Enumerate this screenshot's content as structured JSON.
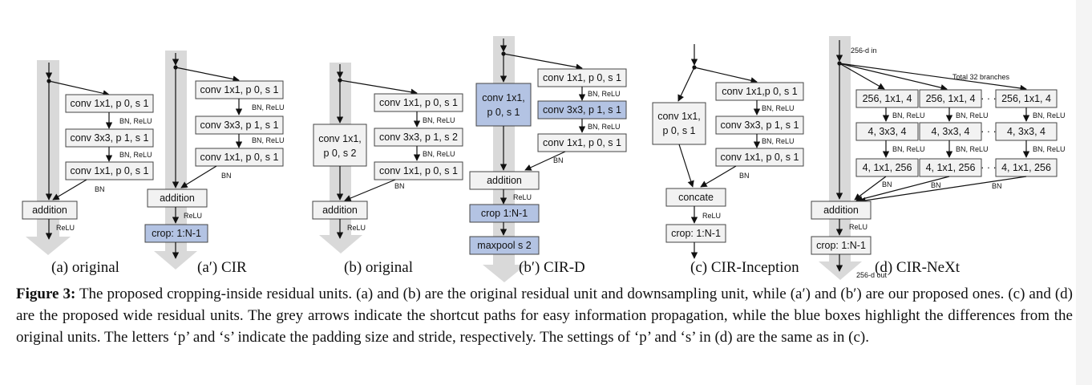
{
  "figure": {
    "a": {
      "convs": [
        "conv 1x1, p 0, s 1",
        "conv 3x3, p 1, s 1",
        "conv 1x1, p 0, s 1"
      ],
      "add": "addition",
      "label": "(a) original"
    },
    "a2": {
      "convs": [
        "conv 1x1, p 0, s 1",
        "conv 3x3,  p 1, s 1",
        "conv 1x1, p 0, s 1"
      ],
      "add": "addition",
      "crop": "crop: 1:N-1",
      "label": "(a′) CIR"
    },
    "b": {
      "convs": [
        "conv 1x1, p 0, s 1",
        "conv 3x3, p 1, s 2",
        "conv 1x1, p 0, s 1"
      ],
      "short": [
        "conv 1x1,",
        "p 0, s 2"
      ],
      "add": "addition",
      "label": "(b) original"
    },
    "b2": {
      "convs": [
        "conv 1x1, p 0, s 1",
        "conv 3x3, p 1, s 1",
        "conv 1x1, p 0, s 1"
      ],
      "short": [
        "conv 1x1,",
        "p 0, s 1"
      ],
      "add": "addition",
      "crop": "crop 1:N-1",
      "pool": "maxpool s 2",
      "label": "(b′) CIR-D"
    },
    "c": {
      "convs": [
        "conv 1x1,p 0, s 1",
        "conv 3x3, p 1, s 1",
        "conv 1x1, p 0, s 1"
      ],
      "short": [
        "conv 1x1,",
        "p 0, s 1"
      ],
      "concat": "concate",
      "crop": "crop: 1:N-1",
      "label": "(c) CIR-Inception"
    },
    "d": {
      "in": "256-d in",
      "out": "256-d out",
      "total": "Total 32 branches",
      "row1": "256, 1x1, 4",
      "row2": "4, 3x3, 4",
      "row3": "4, 1x1, 256",
      "dots": "· · ·",
      "add": "addition",
      "crop": "crop: 1:N-1",
      "label": "(d) CIR-NeXt"
    },
    "tags": {
      "bnrelu": "BN, ReLU",
      "bn": "BN",
      "relu": "ReLU"
    },
    "colors": {
      "highlight": "#b3c3e3",
      "shortcut": "#d9d9d9",
      "box": "#f2f2f2"
    }
  },
  "caption": {
    "title": "Figure 3:",
    "text": "The proposed cropping-inside residual units. (a) and (b) are the original residual unit and downsampling unit, while (a′) and (b′) are our proposed ones. (c) and (d) are the proposed wide residual units. The grey arrows indicate the shortcut paths for easy information propagation, while the blue boxes highlight the differences from the original units. The letters ‘p’ and ‘s’ indicate the padding size and stride, respectively. The settings of ‘p’ and ‘s’ in (d) are the same as in (c)."
  }
}
